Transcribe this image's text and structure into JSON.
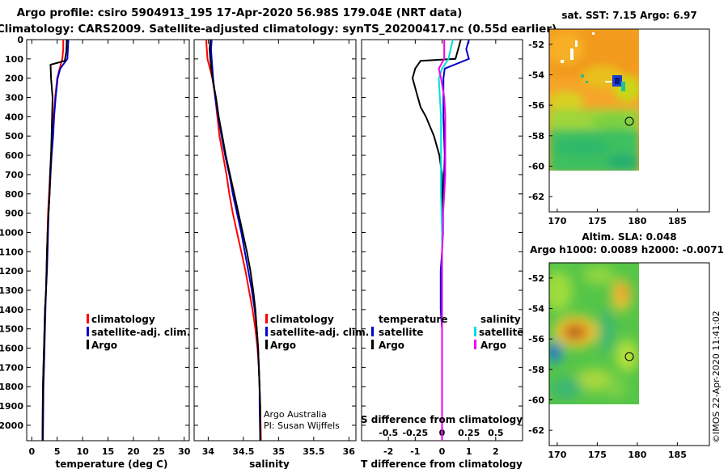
{
  "title": {
    "line1": "Argo profile: csiro 5904913_195 17-Apr-2020 56.98S 179.04E (NRT data)",
    "line2": "Climatology: CARS2009. Satellite-adjusted climatology: synTS_20200417.nc (0.55d earlier)"
  },
  "colors": {
    "argo": "#000000",
    "climatology": "#ff0000",
    "satellite": "#0000cc",
    "satellite_salinity": "#00dddd",
    "argo_salinity_diff": "#ee00ee"
  },
  "chart_data": [
    {
      "id": "temperature",
      "type": "line",
      "xlabel": "temperature (deg C)",
      "ylabel": "",
      "xlim": [
        -1,
        31
      ],
      "ylim": [
        2080,
        0
      ],
      "xticks": [
        0,
        5,
        10,
        15,
        20,
        25,
        30
      ],
      "xtick_labels": [
        "0",
        "5",
        "10",
        "15",
        "20",
        "25",
        "30"
      ],
      "yticks": [
        0,
        100,
        200,
        300,
        400,
        500,
        600,
        700,
        800,
        900,
        1000,
        1100,
        1200,
        1300,
        1400,
        1500,
        1600,
        1700,
        1800,
        1900,
        2000
      ],
      "ytick_labels": [
        "0",
        "100",
        "200",
        "300",
        "400",
        "500",
        "600",
        "700",
        "800",
        "900",
        "1000",
        "1100",
        "1200",
        "1300",
        "1400",
        "1500",
        "1600",
        "1700",
        "1800",
        "1900",
        "2000"
      ],
      "legend": [
        "climatology",
        "satellite-adj. clim.",
        "Argo"
      ],
      "series": [
        {
          "name": "climatology",
          "color": "#ff0000",
          "x": [
            6.2,
            6.2,
            6.0,
            5.5,
            5.0,
            4.6,
            4.3,
            4.1,
            3.8,
            3.6,
            3.4,
            3.2,
            3.1,
            3.0,
            2.9,
            2.8,
            2.6,
            2.5,
            2.4,
            2.3,
            2.2,
            2.1
          ],
          "y": [
            0,
            50,
            100,
            150,
            200,
            300,
            400,
            500,
            600,
            700,
            800,
            900,
            1000,
            1100,
            1200,
            1300,
            1400,
            1500,
            1600,
            1700,
            1800,
            2080
          ]
        },
        {
          "name": "satellite-adj. clim.",
          "color": "#0000cc",
          "x": [
            7.2,
            7.1,
            7.0,
            5.6,
            5.1,
            4.7,
            4.4,
            4.2,
            3.9,
            3.7,
            3.5,
            3.3,
            3.2,
            3.1,
            3.0,
            2.8,
            2.7,
            2.6,
            2.5,
            2.4,
            2.3,
            2.2
          ],
          "y": [
            0,
            50,
            100,
            150,
            200,
            300,
            400,
            500,
            600,
            700,
            800,
            900,
            1000,
            1100,
            1200,
            1300,
            1400,
            1500,
            1600,
            1700,
            1800,
            2080
          ]
        },
        {
          "name": "Argo",
          "color": "#000000",
          "x": [
            6.9,
            6.8,
            6.5,
            3.7,
            3.8,
            4.1,
            4.0,
            3.9,
            3.8,
            3.6,
            3.5,
            3.3,
            3.1,
            3.0,
            2.9,
            2.8,
            2.6,
            2.5,
            2.4,
            2.3,
            2.2,
            2.1
          ],
          "y": [
            0,
            60,
            110,
            130,
            200,
            300,
            400,
            500,
            600,
            700,
            800,
            900,
            1000,
            1100,
            1200,
            1300,
            1400,
            1500,
            1600,
            1700,
            1800,
            2080
          ]
        }
      ]
    },
    {
      "id": "salinity",
      "type": "line",
      "xlabel": "salinity",
      "xlim": [
        33.8,
        36.1
      ],
      "ylim": [
        2080,
        0
      ],
      "xticks": [
        34,
        34.5,
        35,
        35.5,
        36
      ],
      "xtick_labels": [
        "34",
        "34.5",
        "35",
        "35.5",
        "36"
      ],
      "legend": [
        "climatology",
        "satellite-adj. clim.",
        "Argo"
      ],
      "credit": [
        "Argo Australia",
        "PI: Susan Wijffels"
      ],
      "series": [
        {
          "name": "climatology",
          "color": "#ff0000",
          "x": [
            33.97,
            33.98,
            33.99,
            34.06,
            34.1,
            34.13,
            34.16,
            34.21,
            34.26,
            34.3,
            34.35,
            34.41,
            34.47,
            34.53,
            34.58,
            34.63,
            34.67,
            34.7,
            34.72,
            34.73,
            34.74,
            34.75
          ],
          "y": [
            0,
            50,
            100,
            200,
            300,
            400,
            500,
            600,
            700,
            800,
            900,
            1000,
            1100,
            1200,
            1300,
            1400,
            1500,
            1600,
            1700,
            1800,
            1900,
            2080
          ]
        },
        {
          "name": "satellite-adj. clim.",
          "color": "#0000cc",
          "x": [
            34.05,
            34.04,
            34.05,
            34.07,
            34.1,
            34.14,
            34.19,
            34.24,
            34.3,
            34.35,
            34.41,
            34.47,
            34.52,
            34.57,
            34.62,
            34.66,
            34.69,
            34.71,
            34.72,
            34.73,
            34.73,
            34.74
          ],
          "y": [
            0,
            50,
            100,
            200,
            300,
            400,
            500,
            600,
            700,
            800,
            900,
            1000,
            1100,
            1200,
            1300,
            1400,
            1500,
            1600,
            1700,
            1800,
            1900,
            2080
          ]
        },
        {
          "name": "Argo",
          "color": "#000000",
          "x": [
            34.03,
            34.02,
            34.03,
            34.06,
            34.11,
            34.15,
            34.2,
            34.25,
            34.31,
            34.37,
            34.43,
            34.49,
            34.55,
            34.6,
            34.64,
            34.67,
            34.69,
            34.71,
            34.72,
            34.73,
            34.74,
            34.74
          ],
          "y": [
            0,
            50,
            100,
            200,
            300,
            400,
            500,
            600,
            700,
            800,
            900,
            1000,
            1100,
            1200,
            1300,
            1400,
            1500,
            1600,
            1700,
            1800,
            1900,
            2080
          ]
        }
      ]
    },
    {
      "id": "difference",
      "type": "line",
      "xlabel": "T difference from climatology",
      "xlim": [
        -3,
        3
      ],
      "ylim": [
        2080,
        0
      ],
      "xticks": [
        -2,
        -1,
        0,
        1,
        2
      ],
      "xtick_labels": [
        "-2",
        "-1",
        "0",
        "1",
        "2"
      ],
      "secondary_xlabel": "S difference from climatology",
      "secondary_xlim": [
        -0.75,
        0.75
      ],
      "secondary_xticks": [
        -0.5,
        -0.25,
        0,
        0.25,
        0.5
      ],
      "secondary_xtick_labels": [
        "-0.5",
        "-0.25",
        "0",
        "0.25",
        "0.5"
      ],
      "legend_temperature_title": "temperature",
      "legend_salinity_title": "salinity",
      "legend_temperature": [
        "satellite",
        "Argo"
      ],
      "legend_salinity": [
        "satellite",
        "Argo"
      ],
      "series": [
        {
          "name": "temperature satellite",
          "color": "#0000cc",
          "x": [
            1.0,
            0.9,
            1.0,
            0.1,
            0.05,
            0.05,
            0.1,
            0.05,
            0.0,
            0.0,
            -0.05,
            -0.05,
            -0.05,
            0.0,
            0.0,
            0.0,
            0.0,
            0.0,
            0.0,
            0.0,
            0.0
          ],
          "y": [
            0,
            50,
            100,
            150,
            200,
            400,
            600,
            800,
            1000,
            1100,
            1200,
            1300,
            1400,
            1500,
            1600,
            1700,
            1800,
            1900,
            2000,
            2080,
            2080
          ]
        },
        {
          "name": "temperature Argo",
          "color": "#000000",
          "x": [
            0.7,
            0.6,
            0.5,
            -0.8,
            -1.0,
            -1.1,
            -1.0,
            -0.9,
            -0.8,
            -0.6,
            -0.3,
            -0.1,
            0.0,
            0.0,
            0.0,
            0.0,
            0.0,
            0.0,
            0.0,
            0.0,
            0.0
          ],
          "y": [
            0,
            50,
            100,
            110,
            150,
            200,
            250,
            300,
            350,
            400,
            500,
            600,
            700,
            900,
            1100,
            1300,
            1500,
            1700,
            1900,
            2000,
            2080
          ]
        },
        {
          "name": "salinity satellite",
          "color": "#00dddd",
          "x": [
            0.1,
            0.08,
            0.06,
            0.0,
            -0.03,
            -0.02,
            -0.01,
            -0.01,
            -0.01,
            -0.01,
            0.0,
            0.0,
            0.0,
            0.0,
            0.0,
            0.0,
            0.0,
            0.0,
            0.0,
            0.0,
            0.0
          ],
          "y": [
            0,
            50,
            100,
            150,
            200,
            300,
            400,
            500,
            600,
            800,
            1000,
            1100,
            1200,
            1300,
            1400,
            1500,
            1600,
            1700,
            1800,
            1900,
            2080
          ]
        },
        {
          "name": "salinity Argo",
          "color": "#ee00ee",
          "x": [
            0.02,
            0.02,
            0.02,
            -0.03,
            -0.01,
            0.02,
            0.03,
            0.03,
            0.03,
            0.03,
            0.02,
            0.01,
            0.01,
            0.0,
            0.0,
            0.0,
            0.0,
            0.0,
            0.0,
            0.0,
            0.0
          ],
          "y": [
            0,
            50,
            100,
            150,
            200,
            300,
            400,
            500,
            600,
            700,
            800,
            900,
            1000,
            1100,
            1200,
            1300,
            1400,
            1500,
            1600,
            1700,
            2080
          ]
        }
      ]
    },
    {
      "id": "sst-map",
      "type": "heatmap",
      "title": "sat. SST: 7.15 Argo: 6.97",
      "xlim": [
        169,
        189
      ],
      "ylim": [
        -63,
        -51
      ],
      "xticks": [
        170,
        175,
        180,
        185
      ],
      "xtick_labels": [
        "170",
        "175",
        "180",
        "185"
      ],
      "yticks": [
        -52,
        -54,
        -56,
        -58,
        -60,
        -62
      ],
      "ytick_labels": [
        "-52",
        "-54",
        "-56",
        "-58",
        "-60",
        "-62"
      ],
      "data_extent_lon": [
        169,
        180
      ],
      "data_extent_lat": [
        -60,
        -51
      ],
      "argo_location": {
        "lon": 179.04,
        "lat": -56.98
      }
    },
    {
      "id": "sla-map",
      "type": "heatmap",
      "title_line1": "Altim. SLA: 0.048",
      "title_line2": "Argo h1000: 0.0089 h2000: -0.0071",
      "xlim": [
        169,
        189
      ],
      "ylim": [
        -63,
        -51
      ],
      "xticks": [
        170,
        175,
        180,
        185
      ],
      "xtick_labels": [
        "170",
        "175",
        "180",
        "185"
      ],
      "yticks": [
        -52,
        -54,
        -56,
        -58,
        -60,
        -62
      ],
      "ytick_labels": [
        "-52",
        "-54",
        "-56",
        "-58",
        "-60",
        "-62"
      ],
      "data_extent_lon": [
        169,
        180
      ],
      "data_extent_lat": [
        -60,
        -51
      ],
      "argo_location": {
        "lon": 179.04,
        "lat": -56.98
      }
    }
  ],
  "watermark": "©IMOS 22-Apr-2020 11:41:02"
}
